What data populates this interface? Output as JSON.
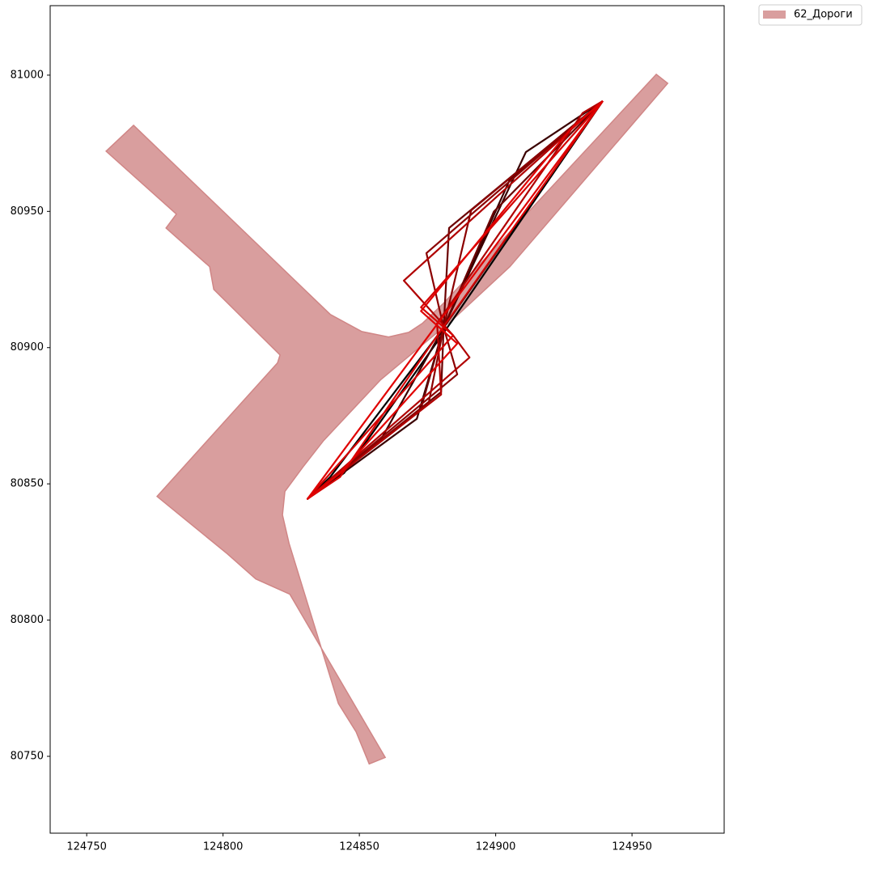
{
  "chart_data": {
    "type": "map",
    "xlim": [
      124736.6,
      124983.8
    ],
    "ylim": [
      80721.8,
      81025.5
    ],
    "xticks": [
      124750,
      124800,
      124850,
      124900,
      124950
    ],
    "yticks": [
      80750,
      80800,
      80850,
      80900,
      80950,
      81000
    ],
    "legend": "outside-right",
    "layers": [
      {
        "name": "62_Дороги",
        "color": "#d08686",
        "x": [
          124757.1,
          124767.2,
          124839.3,
          124850.9,
          124860.7,
          124868.1,
          124873.1,
          124880.9,
          124958.9,
          124963.1,
          124905.2,
          124884.4,
          124857.7,
          124836.9,
          124829.5,
          124822.7,
          124821.8,
          124824.2,
          124842.3,
          124848.8,
          124853.6,
          124859.5,
          124824.5,
          124812.0,
          124801.6,
          124775.8,
          124820.0,
          124820.9,
          124796.6,
          124795.1,
          124779.1,
          124782.9
        ],
        "y": [
          80972.1,
          80981.6,
          80912.2,
          80905.9,
          80903.9,
          80905.6,
          80908.9,
          80916.3,
          81000.3,
          80997.0,
          80929.7,
          80910.4,
          80888.1,
          80865.9,
          80856.4,
          80847.2,
          80838.6,
          80828.2,
          80769.4,
          80759.0,
          80747.2,
          80749.6,
          80809.5,
          80815.1,
          80824.3,
          80845.4,
          80894.4,
          80897.3,
          80921.4,
          80929.7,
          80943.9,
          80949.0
        ]
      }
    ],
    "series": [
      {
        "color": "#000000",
        "x": [
          124939.3,
          124880.9,
          124839.3,
          124831.0,
          124844.4,
          124884.4,
          124939.3
        ],
        "y": [
          80990.5,
          80907.4,
          80852.5,
          80844.5,
          80854.0,
          80910.4,
          80990.5
        ]
      },
      {
        "color": "#3a0000",
        "x": [
          124939.3,
          124911.1,
          124880.9,
          124871.1,
          124831.0,
          124857.7,
          124880.9,
          124905.2,
          124939.3
        ],
        "y": [
          80990.5,
          80971.8,
          80907.4,
          80873.9,
          80844.5,
          80865.9,
          80907.4,
          80961.7,
          80990.5
        ]
      },
      {
        "color": "#6b0000",
        "x": [
          124939.3,
          124882.9,
          124880.9,
          124880.0,
          124831.0,
          124872.6,
          124880.9,
          124899.3,
          124939.3
        ],
        "y": [
          80990.5,
          80943.9,
          80907.4,
          80883.7,
          80844.5,
          80877.7,
          80907.4,
          80949.9,
          80990.5
        ]
      },
      {
        "color": "#8b0000",
        "x": [
          124939.3,
          124874.6,
          124880.9,
          124885.9,
          124831.0,
          124875.5,
          124880.9,
          124891.0,
          124939.3
        ],
        "y": [
          80990.5,
          80934.7,
          80907.4,
          80890.2,
          80844.5,
          80880.1,
          80907.4,
          80950.4,
          80990.5
        ]
      },
      {
        "color": "#b00000",
        "x": [
          124939.3,
          124866.3,
          124884.4,
          124890.4,
          124831.0,
          124880.0,
          124878.5,
          124931.9,
          124939.3
        ],
        "y": [
          80990.5,
          80924.6,
          80904.5,
          80896.4,
          80844.5,
          80882.8,
          80908.9,
          80986.1,
          80990.5
        ]
      },
      {
        "color": "#d40000",
        "x": [
          124939.3,
          124872.6,
          124884.4,
          124831.0,
          124842.9,
          124875.5,
          124939.3
        ],
        "y": [
          80990.5,
          80914.8,
          80904.5,
          80844.5,
          80852.5,
          80900.0,
          80990.5
        ]
      },
      {
        "color": "#e00000",
        "x": [
          124939.3,
          124927.4,
          124872.6,
          124885.9,
          124842.9,
          124831.0,
          124939.3
        ],
        "y": [
          80990.5,
          80980.1,
          80913.4,
          80901.5,
          80854.0,
          80844.5,
          80990.5
        ]
      }
    ]
  }
}
